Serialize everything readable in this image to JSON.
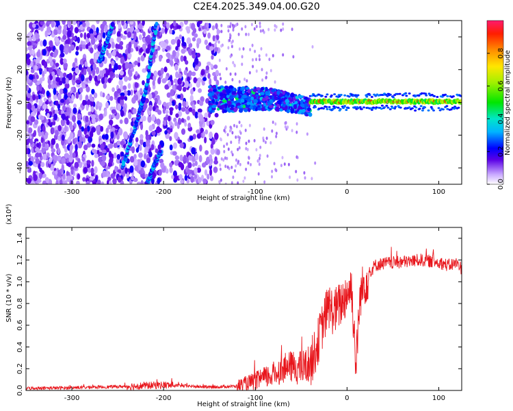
{
  "title": "C2E4.2025.349.04.00.G20",
  "chart_data": [
    {
      "type": "heatmap",
      "title": "C2E4.2025.349.04.00.G20",
      "xlabel": "Height of straight line (km)",
      "ylabel": "Frequency (Hz)",
      "xlim": [
        -350,
        125
      ],
      "ylim": [
        -50,
        50
      ],
      "x_ticks": [
        -300,
        -200,
        -100,
        0,
        100
      ],
      "y_ticks": [
        -40,
        -20,
        0,
        20,
        40
      ],
      "colorbar": {
        "label": "Normalized spectral amplitude",
        "range": [
          0,
          1
        ],
        "ticks": [
          0.0,
          0.2,
          0.4,
          0.6,
          0.8
        ]
      },
      "features": [
        {
          "name": "diffuse noise",
          "x_range": [
            -350,
            -140
          ],
          "y_range": [
            -50,
            50
          ]
        },
        {
          "name": "diagonal track A",
          "points": [
            [
              -270,
              25
            ],
            [
              -262,
              37
            ],
            [
              -255,
              48
            ]
          ]
        },
        {
          "name": "diagonal track B",
          "points": [
            [
              -245,
              -40
            ],
            [
              -228,
              -10
            ],
            [
              -218,
              10
            ],
            [
              -208,
              48
            ]
          ]
        },
        {
          "name": "diagonal track C",
          "points": [
            [
              -218,
              -50
            ],
            [
              -210,
              -38
            ],
            [
              -203,
              -30
            ]
          ]
        },
        {
          "name": "signal cluster",
          "x_range": [
            -150,
            -40
          ],
          "y_center": 2
        },
        {
          "name": "steady tone",
          "x_range": [
            -40,
            125
          ],
          "y_center": 0.5
        }
      ]
    },
    {
      "type": "line",
      "xlabel": "Height of straight line (km)",
      "ylabel": "SNR (10 * v/v)",
      "y_multiplier": "(x10⁴)",
      "xlim": [
        -350,
        125
      ],
      "ylim": [
        0,
        1.5
      ],
      "x_ticks": [
        -300,
        -200,
        -100,
        0,
        100
      ],
      "y_ticks": [
        0.0,
        0.2,
        0.4,
        0.6,
        0.8,
        1.0,
        1.2,
        1.4
      ],
      "series": [
        {
          "name": "SNR",
          "color": "#e8151b",
          "x": [
            -350,
            -300,
            -250,
            -200,
            -150,
            -120,
            -100,
            -80,
            -70,
            -60,
            -50,
            -40,
            -35,
            -30,
            -25,
            -20,
            -15,
            -10,
            -5,
            0,
            5,
            10,
            12,
            15,
            20,
            25,
            30,
            40,
            60,
            80,
            100,
            110,
            120,
            125
          ],
          "y": [
            0.02,
            0.025,
            0.035,
            0.05,
            0.03,
            0.04,
            0.08,
            0.15,
            0.2,
            0.22,
            0.2,
            0.25,
            0.35,
            0.5,
            0.65,
            0.78,
            0.72,
            0.76,
            0.82,
            0.9,
            0.95,
            0.2,
            0.6,
            0.9,
            1.0,
            1.08,
            1.15,
            1.17,
            1.18,
            1.2,
            1.18,
            1.15,
            1.17,
            1.12
          ]
        }
      ]
    }
  ]
}
